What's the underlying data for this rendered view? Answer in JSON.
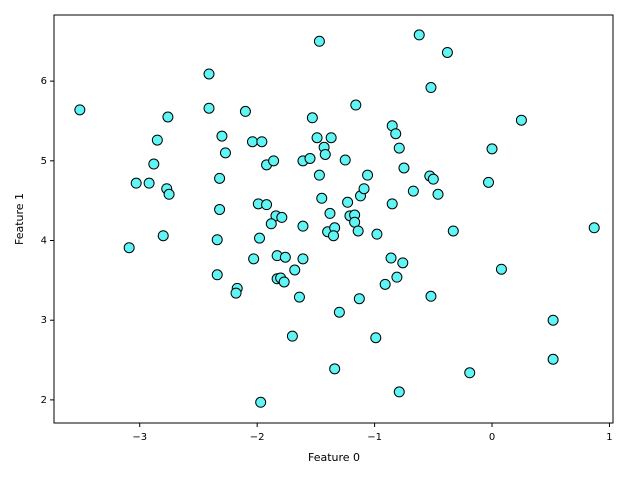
{
  "chart_data": {
    "type": "scatter",
    "xlabel": "Feature 0",
    "ylabel": "Feature 1",
    "color": "#5ff5f5",
    "edgecolor": "#000000",
    "xlim": [
      -3.73,
      1.03
    ],
    "ylim": [
      1.71,
      6.83
    ],
    "xticks": [
      {
        "value": -3,
        "label": "−3"
      },
      {
        "value": -2,
        "label": "−2"
      },
      {
        "value": -1,
        "label": "−1"
      },
      0,
      1
    ],
    "yticks": [
      2,
      3,
      4,
      5,
      6
    ],
    "x": [
      -3.51,
      -3.09,
      -3.03,
      -2.92,
      -2.88,
      -2.85,
      -2.76,
      -2.77,
      -2.75,
      -2.8,
      -2.41,
      -2.41,
      -2.3,
      -2.27,
      -2.32,
      -2.32,
      -2.34,
      -2.34,
      -2.17,
      -2.18,
      -2.1,
      -2.04,
      -1.96,
      -1.92,
      -1.86,
      -1.99,
      -1.92,
      -1.84,
      -1.88,
      -1.79,
      -1.98,
      -2.03,
      -1.83,
      -1.76,
      -1.83,
      -1.8,
      -1.77,
      -1.97,
      -1.68,
      -1.64,
      -1.7,
      -1.61,
      -1.61,
      -1.61,
      -1.55,
      -1.53,
      -1.49,
      -1.47,
      -1.43,
      -1.42,
      -1.37,
      -1.47,
      -1.45,
      -1.38,
      -1.4,
      -1.34,
      -1.35,
      -1.3,
      -1.34,
      -1.25,
      -1.16,
      -1.23,
      -1.21,
      -1.17,
      -1.17,
      -1.14,
      -1.12,
      -1.09,
      -1.06,
      -1.13,
      -0.98,
      -0.99,
      -0.91,
      -0.86,
      -0.85,
      -0.85,
      -0.82,
      -0.79,
      -0.75,
      -0.81,
      -0.76,
      -0.79,
      -0.67,
      -0.62,
      -0.52,
      -0.53,
      -0.5,
      -0.46,
      -0.52,
      -0.38,
      -0.33,
      -0.19,
      -0.03,
      0.0,
      0.08,
      0.25,
      0.52,
      0.52,
      0.87
    ],
    "values": [
      5.64,
      3.91,
      4.72,
      4.72,
      4.96,
      5.26,
      5.55,
      4.65,
      4.58,
      4.06,
      6.09,
      5.66,
      5.31,
      5.1,
      4.78,
      4.39,
      4.01,
      3.57,
      3.4,
      3.34,
      5.62,
      5.24,
      5.24,
      4.95,
      5.0,
      4.46,
      4.45,
      4.31,
      4.21,
      4.29,
      4.03,
      3.77,
      3.81,
      3.79,
      3.52,
      3.53,
      3.48,
      1.97,
      3.63,
      3.29,
      2.8,
      4.18,
      3.77,
      5.0,
      5.03,
      5.54,
      5.29,
      6.5,
      5.17,
      5.08,
      5.29,
      4.82,
      4.53,
      4.34,
      4.11,
      4.16,
      4.06,
      3.1,
      2.39,
      5.01,
      5.7,
      4.48,
      4.31,
      4.32,
      4.23,
      4.12,
      4.56,
      4.65,
      4.82,
      3.27,
      4.08,
      2.78,
      3.45,
      3.78,
      4.46,
      5.44,
      5.34,
      5.16,
      4.91,
      3.54,
      3.72,
      2.1,
      4.62,
      6.58,
      5.92,
      4.81,
      4.77,
      4.58,
      3.3,
      6.36,
      4.12,
      2.34,
      4.73,
      5.15,
      3.64,
      5.51,
      3.0,
      2.51,
      4.16
    ]
  }
}
